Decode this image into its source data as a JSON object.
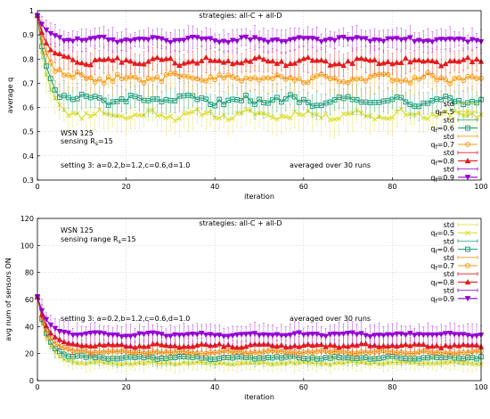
{
  "chart_data": [
    {
      "type": "line",
      "title": "strategies: all-C + all-D",
      "xlabel": "iteration",
      "ylabel": "average q",
      "xlim": [
        0,
        100
      ],
      "ylim": [
        0.3,
        1.0
      ],
      "xticks": [
        "0",
        "20",
        "40",
        "60",
        "80",
        "100"
      ],
      "yticks": [
        "0.3",
        "0.4",
        "0.5",
        "0.6",
        "0.7",
        "0.8",
        "0.9",
        "1"
      ],
      "grid": true,
      "legend_position": "bottom-right",
      "annotations": [
        "WSN 125",
        "sensing R",
        "s",
        "=15",
        "setting 3: a=0.2,b=1.2,c=0.6,d=1.0",
        "averaged over 30 runs"
      ],
      "legend_entries": [
        "std",
        "q",
        "f",
        "=.5",
        "std",
        "q",
        "f",
        "=0.6",
        "std",
        "q",
        "f",
        "=0.7",
        "std",
        "q",
        "f",
        "=0.8",
        "std",
        "q",
        "f",
        "=0.9"
      ],
      "series": [
        {
          "color": "#dddd33",
          "marker": "x",
          "start": 0.98,
          "plateau": 0.57,
          "amp": 0.02,
          "std": 0.06
        },
        {
          "color": "#20a080",
          "marker": "square",
          "start": 0.98,
          "plateau": 0.63,
          "amp": 0.02,
          "std": 0.05
        },
        {
          "color": "#f39c12",
          "marker": "circle",
          "start": 0.98,
          "plateau": 0.72,
          "amp": 0.02,
          "std": 0.06
        },
        {
          "color": "#e41a1c",
          "marker": "triangle",
          "start": 0.98,
          "plateau": 0.79,
          "amp": 0.015,
          "std": 0.05
        },
        {
          "color": "#9400d3",
          "marker": "triangle-down",
          "start": 0.98,
          "plateau": 0.88,
          "amp": 0.01,
          "std": 0.04
        }
      ]
    },
    {
      "type": "line",
      "title": "strategies: all-C + all-D",
      "xlabel": "iteration",
      "ylabel": "avg num of sensors ON",
      "xlim": [
        0,
        100
      ],
      "ylim": [
        0,
        120
      ],
      "xticks": [
        "0",
        "20",
        "40",
        "60",
        "80",
        "100"
      ],
      "yticks": [
        "0",
        "20",
        "40",
        "60",
        "80",
        "100",
        "120"
      ],
      "grid": true,
      "legend_position": "top-right",
      "annotations": [
        "WSN 125",
        "sensing range R",
        "s",
        "=15",
        "setting 3: a=0.2,b=1.2,c=0.6,d=1.0",
        "averaged over 30 runs"
      ],
      "legend_entries": [
        "std",
        "q",
        "f",
        "=0.5",
        "std",
        "q",
        "f",
        "=0.6",
        "std",
        "q",
        "f",
        "=0.7",
        "std",
        "q",
        "f",
        "=0.8",
        "std",
        "q",
        "f",
        "=0.9"
      ],
      "series": [
        {
          "color": "#dddd33",
          "marker": "x",
          "start": 62,
          "plateau": 13,
          "amp": 1.0,
          "std": 5
        },
        {
          "color": "#20a080",
          "marker": "square",
          "start": 62,
          "plateau": 17,
          "amp": 1.0,
          "std": 5
        },
        {
          "color": "#f39c12",
          "marker": "circle",
          "start": 62,
          "plateau": 21,
          "amp": 1.0,
          "std": 5
        },
        {
          "color": "#e41a1c",
          "marker": "triangle",
          "start": 62,
          "plateau": 26,
          "amp": 1.2,
          "std": 6
        },
        {
          "color": "#9400d3",
          "marker": "triangle-down",
          "start": 62,
          "plateau": 34,
          "amp": 1.2,
          "std": 7
        }
      ]
    }
  ]
}
